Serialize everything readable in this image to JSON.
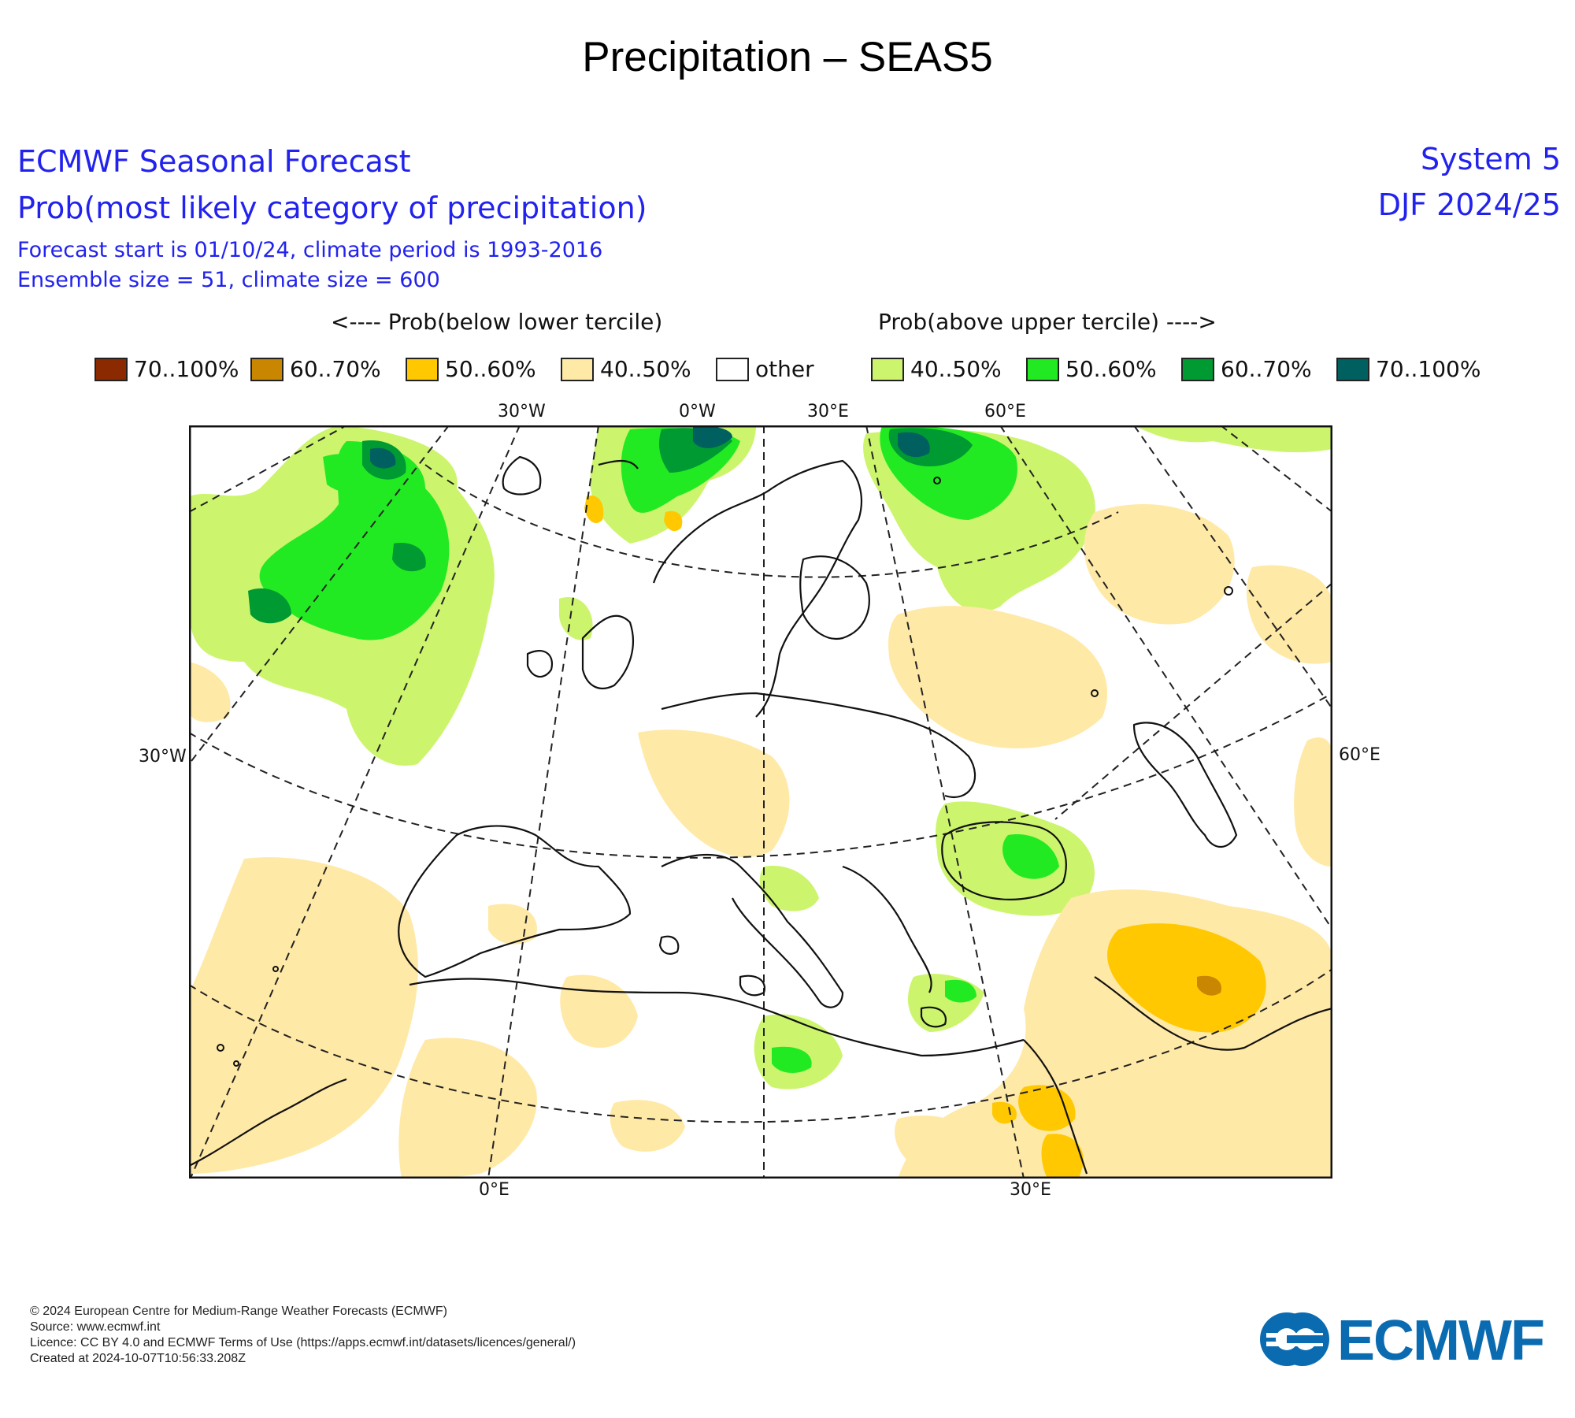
{
  "page_title": "Precipitation – SEAS5",
  "header": {
    "line1": "ECMWF Seasonal Forecast",
    "line2": "Prob(most likely category of precipitation)",
    "line3": "Forecast start is 01/10/24, climate period is 1993-2016",
    "line4": "Ensemble size = 51, climate size = 600",
    "system": "System 5",
    "season": "DJF 2024/25"
  },
  "legend": {
    "below_heading": "<---- Prob(below lower tercile)",
    "above_heading": "Prob(above upper tercile) ---->",
    "items": [
      {
        "label": "70..100%",
        "color": "#8b2a00"
      },
      {
        "label": "60..70%",
        "color": "#c98600"
      },
      {
        "label": "50..60%",
        "color": "#ffc800"
      },
      {
        "label": "40..50%",
        "color": "#ffe9a6"
      },
      {
        "label": "other",
        "color": "#ffffff"
      },
      {
        "label": "40..50%",
        "color": "#ccf56d"
      },
      {
        "label": "50..60%",
        "color": "#22ea22"
      },
      {
        "label": "60..70%",
        "color": "#009a32"
      },
      {
        "label": "70..100%",
        "color": "#006060"
      }
    ]
  },
  "map": {
    "labels": {
      "top_30w": "30°W",
      "top_0w": "0°W",
      "top_30e": "30°E",
      "top_60e": "60°E",
      "left_30w": "30°W",
      "right_60e": "60°E",
      "bottom_0e": "0°E",
      "bottom_30e": "30°E"
    }
  },
  "footer": {
    "copyright": "© 2024 European Centre for Medium-Range Weather Forecasts (ECMWF)",
    "source": "Source: www.ecmwf.int",
    "licence": "Licence: CC BY 4.0 and ECMWF Terms of Use (https://apps.ecmwf.int/datasets/licences/general/)",
    "created": "Created at 2024-10-07T10:56:33.208Z"
  },
  "logo": {
    "text": "ECMWF",
    "color": "#0b6bb1"
  }
}
